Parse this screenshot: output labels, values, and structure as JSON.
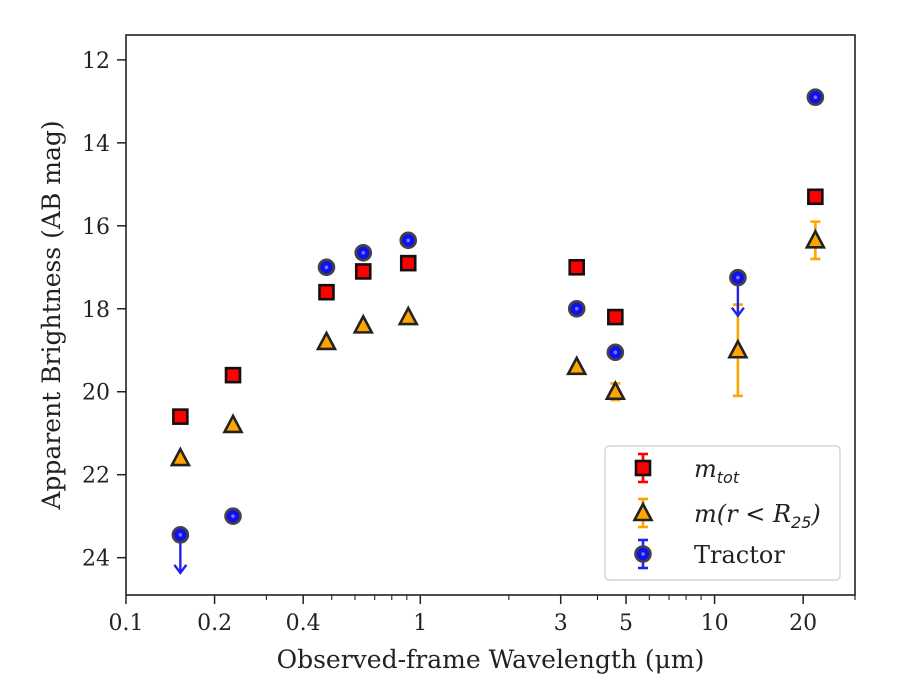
{
  "chart_data": {
    "type": "scatter",
    "xlabel": "Observed-frame Wavelength (μm)",
    "ylabel": "Apparent Brightness (AB mag)",
    "x_scale": "log",
    "y_inverted": true,
    "xlim": [
      0.1,
      30
    ],
    "ylim": [
      24.9,
      11.4
    ],
    "x_ticks": [
      {
        "value": 0.1,
        "label": "0.1"
      },
      {
        "value": 0.2,
        "label": "0.2"
      },
      {
        "value": 0.4,
        "label": "0.4"
      },
      {
        "value": 1,
        "label": "1"
      },
      {
        "value": 3,
        "label": "3"
      },
      {
        "value": 5,
        "label": "5"
      },
      {
        "value": 10,
        "label": "10"
      },
      {
        "value": 20,
        "label": "20"
      }
    ],
    "y_ticks": [
      {
        "value": 12,
        "label": "12"
      },
      {
        "value": 14,
        "label": "14"
      },
      {
        "value": 16,
        "label": "16"
      },
      {
        "value": 18,
        "label": "18"
      },
      {
        "value": 20,
        "label": "20"
      },
      {
        "value": 22,
        "label": "22"
      },
      {
        "value": 24,
        "label": "24"
      }
    ],
    "legend_position": "bottom-right",
    "series": [
      {
        "name": "m_tot",
        "legend_main": "m",
        "legend_sub": "tot",
        "marker": "square",
        "face_color": "#ff0000",
        "edge_color": "#111111",
        "errorbar_color": "#ff0000",
        "points": [
          {
            "x": 0.153,
            "y": 20.6
          },
          {
            "x": 0.231,
            "y": 19.6
          },
          {
            "x": 0.48,
            "y": 17.6
          },
          {
            "x": 0.64,
            "y": 17.1
          },
          {
            "x": 0.91,
            "y": 16.9
          },
          {
            "x": 3.4,
            "y": 17.0
          },
          {
            "x": 4.6,
            "y": 18.2
          },
          {
            "x": 22.0,
            "y": 15.3
          }
        ]
      },
      {
        "name": "m(r < R_25)",
        "legend_main": "m(r < R",
        "legend_sub": "25",
        "legend_end": ")",
        "marker": "triangle",
        "face_color": "#ffa500",
        "edge_color": "#222222",
        "errorbar_color": "#ffa500",
        "points": [
          {
            "x": 0.153,
            "y": 21.6
          },
          {
            "x": 0.231,
            "y": 20.8
          },
          {
            "x": 0.48,
            "y": 18.8
          },
          {
            "x": 0.64,
            "y": 18.4
          },
          {
            "x": 0.91,
            "y": 18.2
          },
          {
            "x": 3.4,
            "y": 19.4
          },
          {
            "x": 4.6,
            "y": 20.0,
            "err": 0.2
          },
          {
            "x": 12.0,
            "y": 19.0,
            "err": 1.1
          },
          {
            "x": 22.0,
            "y": 16.35,
            "err": 0.45
          }
        ]
      },
      {
        "name": "Tractor",
        "legend_main": "Tractor",
        "marker": "circle",
        "face_color": "#1111ee",
        "edge_color": "#444444",
        "errorbar_color": "#2222ee",
        "points": [
          {
            "x": 0.153,
            "y": 23.45,
            "upper_limit": true
          },
          {
            "x": 0.231,
            "y": 23.0
          },
          {
            "x": 0.48,
            "y": 17.0
          },
          {
            "x": 0.64,
            "y": 16.65
          },
          {
            "x": 0.91,
            "y": 16.35
          },
          {
            "x": 3.4,
            "y": 18.0
          },
          {
            "x": 4.6,
            "y": 19.05
          },
          {
            "x": 12.0,
            "y": 17.25,
            "upper_limit": true
          },
          {
            "x": 22.0,
            "y": 12.9
          }
        ]
      }
    ]
  }
}
